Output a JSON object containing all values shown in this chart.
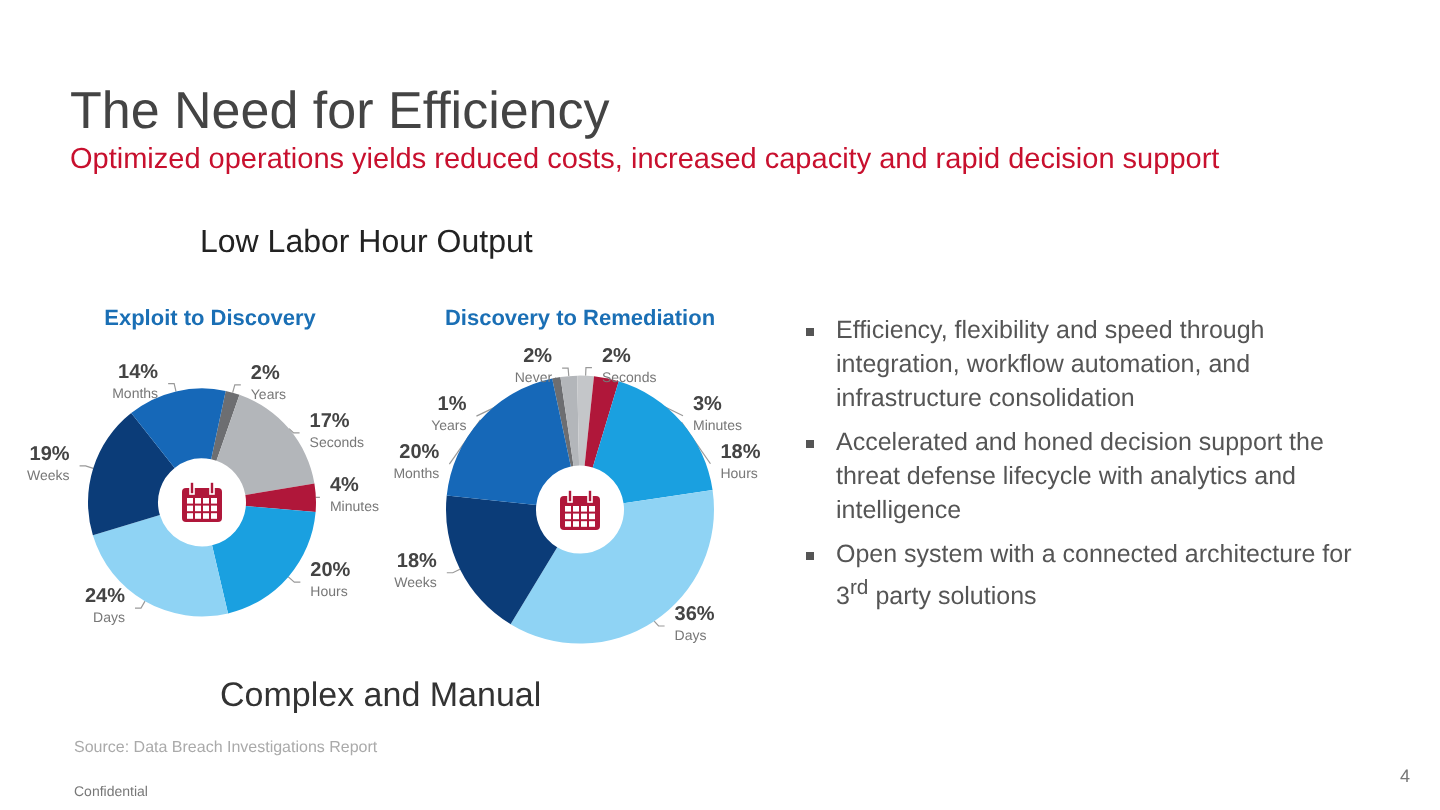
{
  "chart_data": [
    {
      "type": "donut",
      "title": "Exploit to Discovery",
      "categories": [
        "Years",
        "Seconds",
        "Minutes",
        "Hours",
        "Days",
        "Weeks",
        "Months"
      ],
      "values": [
        2,
        17,
        4,
        20,
        24,
        19,
        14
      ],
      "value_labels": [
        "2%",
        "17%",
        "4%",
        "20%",
        "24%",
        "19%",
        "14%"
      ],
      "colors": [
        "#6d6e71",
        "#b3b6ba",
        "#b0173a",
        "#1aa0e0",
        "#8fd3f4",
        "#0b3c78",
        "#1668b8"
      ]
    },
    {
      "type": "donut",
      "title": "Discovery to Remediation",
      "categories": [
        "Years",
        "Never",
        "Seconds",
        "Minutes",
        "Hours",
        "Days",
        "Weeks",
        "Months"
      ],
      "values": [
        1,
        2,
        2,
        3,
        18,
        36,
        18,
        20
      ],
      "value_labels": [
        "1%",
        "2%",
        "2%",
        "3%",
        "18%",
        "36%",
        "18%",
        "20%"
      ],
      "colors": [
        "#6d6e71",
        "#b3b6ba",
        "#c4c6c9",
        "#b0173a",
        "#1aa0e0",
        "#8fd3f4",
        "#0b3c78",
        "#1668b8"
      ]
    },
    {
      "type": "other",
      "title": "The Need for Efficiency",
      "subtitle": "Optimized operations yields reduced costs, increased capacity and rapid decision support",
      "annotations": [
        "Low Labor Hour Output",
        "Efficiency, flexibility and speed through integration,  workflow automation, and infrastructure consolidation",
        "Accelerated and honed decision support the threat defense lifecycle with analytics and intelligence",
        "Open system with a connected architecture for 3$^{rd}$ party solutions",
        "Complex and Manual",
        "Source: Data Breach Investigations Report",
        "Confidential",
        "4"
      ]
    }
  ]
}
